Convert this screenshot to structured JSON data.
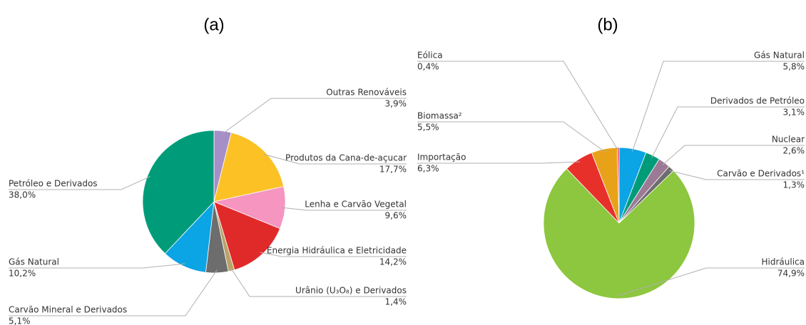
{
  "chart_data": [
    {
      "type": "pie",
      "title": "(a)",
      "categories": [
        "Outras Renováveis",
        "Produtos da Cana-de-açucar",
        "Lenha e Carvão Vegetal",
        "Energia Hidráulica e Eletricidade",
        "Urânio (U₃O₈) e Derivados",
        "Carvão Mineral e Derivados",
        "Gás Natural",
        "Petróleo e Derivados"
      ],
      "values": [
        3.9,
        17.7,
        9.6,
        14.2,
        1.4,
        5.1,
        10.2,
        38.0
      ],
      "value_labels": [
        "3,9%",
        "17,7%",
        "9,6%",
        "14,2%",
        "1,4%",
        "5,1%",
        "10,2%",
        "38,0%"
      ],
      "colors": [
        "#a58fc8",
        "#fcc125",
        "#f595c0",
        "#e02a2a",
        "#b9a36a",
        "#6d6d6d",
        "#0ba4e4",
        "#009c7a"
      ]
    },
    {
      "type": "pie",
      "title": "(b)",
      "categories": [
        "Gás Natural",
        "Derivados de Petróleo",
        "Nuclear",
        "Carvão e Derivados¹",
        "Hidráulica",
        "Importação",
        "Biomassa²",
        "Eólica"
      ],
      "values": [
        5.8,
        3.1,
        2.6,
        1.3,
        74.9,
        6.3,
        5.5,
        0.4
      ],
      "value_labels": [
        "5,8%",
        "3,1%",
        "2,6%",
        "1,3%",
        "74,9%",
        "6,3%",
        "5,5%",
        "0,4%"
      ],
      "colors": [
        "#0ba4e4",
        "#009c7a",
        "#9c7a96",
        "#6d6d6d",
        "#8dc63f",
        "#e8302a",
        "#e8a21a",
        "#e8436a"
      ]
    }
  ]
}
